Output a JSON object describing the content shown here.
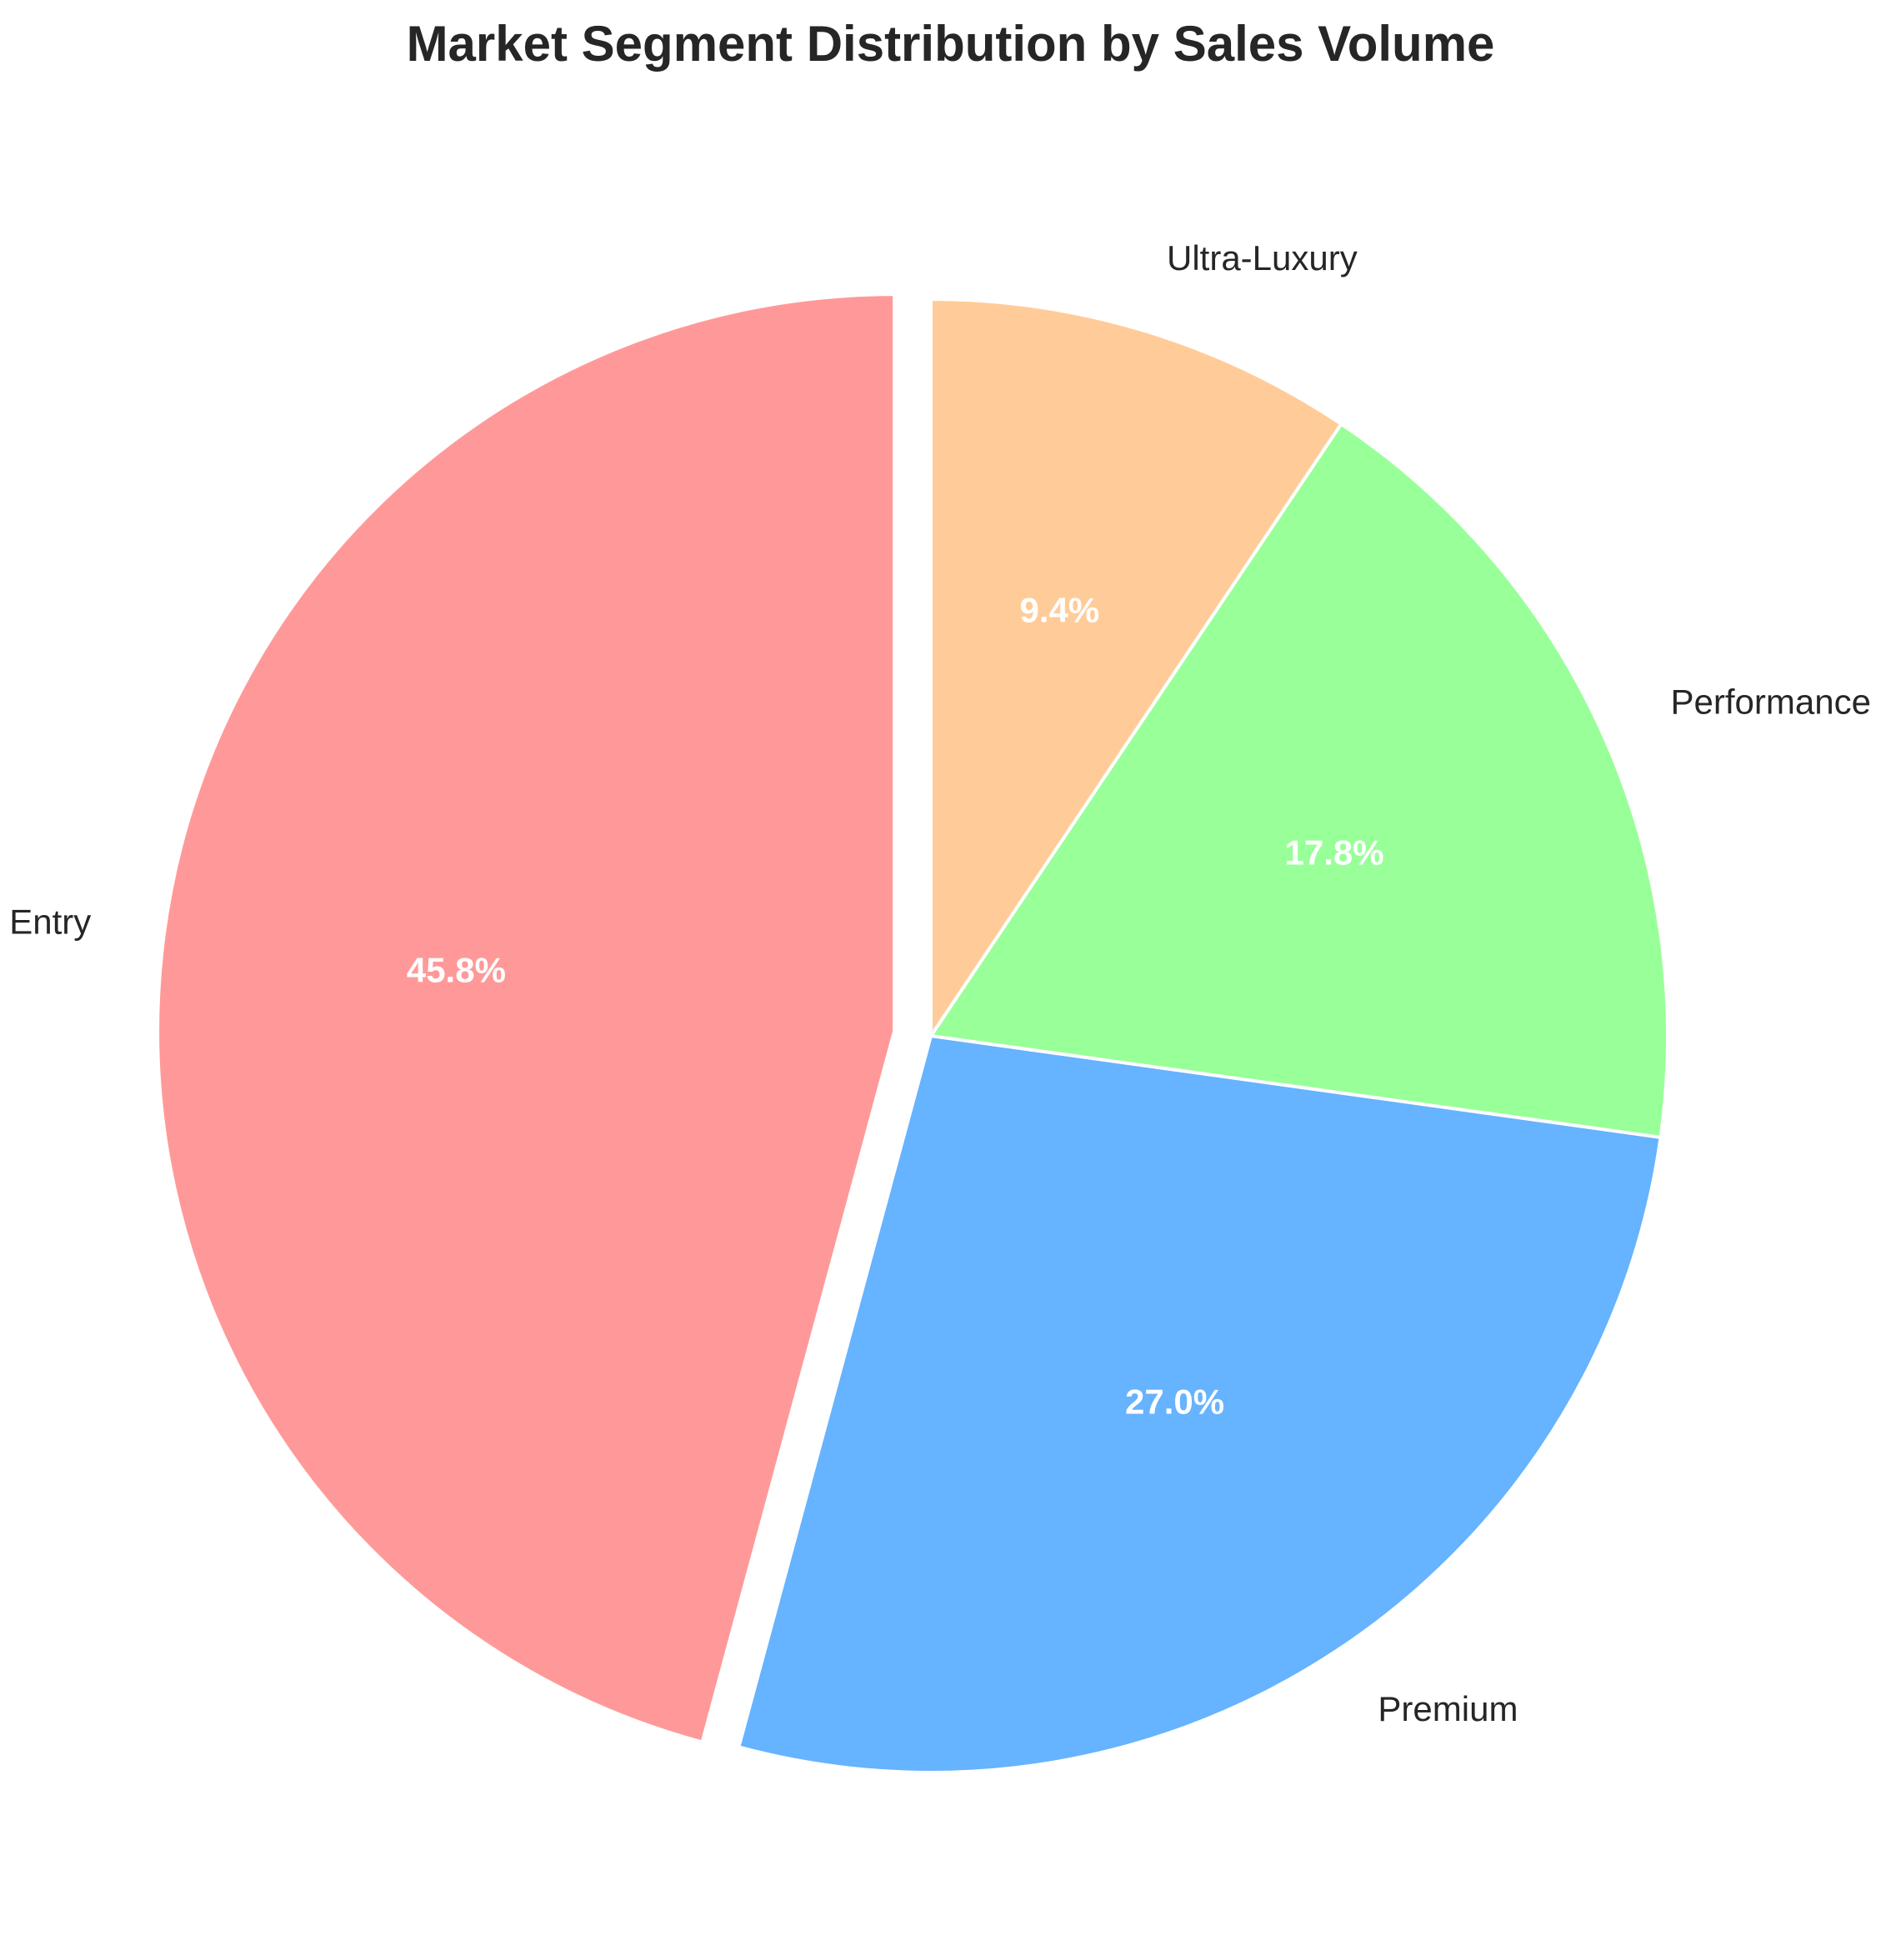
{
  "chart_data": {
    "type": "pie",
    "title": "Market Segment Distribution by Sales Volume",
    "categories": [
      "Entry",
      "Premium",
      "Performance",
      "Ultra-Luxury"
    ],
    "values": [
      45.8,
      27.0,
      17.8,
      9.4
    ],
    "percent_labels": [
      "45.8%",
      "27.0%",
      "17.8%",
      "9.4%"
    ],
    "colors": [
      "#FF9999",
      "#66B3FF",
      "#99FF99",
      "#FFCC99"
    ],
    "start_angle_deg": 90,
    "direction": "counterclockwise",
    "explode": [
      0.05,
      0,
      0,
      0
    ],
    "edge_color": "#ffffff",
    "legend": "none"
  }
}
